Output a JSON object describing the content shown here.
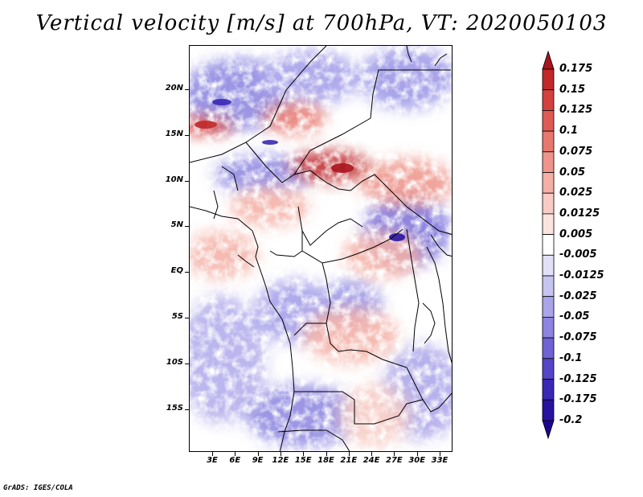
{
  "title": "Vertical velocity [m/s] at 700hPa, VT: 2020050103",
  "lat_labels": [
    "20N",
    "15N",
    "10N",
    "5N",
    "EQ",
    "5S",
    "10S",
    "15S"
  ],
  "lon_labels": [
    "3E",
    "6E",
    "9E",
    "12E",
    "15E",
    "18E",
    "21E",
    "24E",
    "27E",
    "30E",
    "33E"
  ],
  "colorbar": {
    "labels": [
      "0.175",
      "0.15",
      "0.125",
      "0.1",
      "0.075",
      "0.05",
      "0.025",
      "0.0125",
      "0.005",
      "-0.005",
      "-0.0125",
      "-0.025",
      "-0.05",
      "-0.075",
      "-0.1",
      "-0.125",
      "-0.175",
      "-0.2"
    ],
    "colors": [
      "#a8141e",
      "#c0282a",
      "#d4403e",
      "#e05a55",
      "#e8786e",
      "#ee948a",
      "#f4b0a6",
      "#f8ccc4",
      "#fbe4de",
      "#ffffff",
      "#e2e0f6",
      "#c8c4f0",
      "#aaa4e8",
      "#8c84e0",
      "#6e62d4",
      "#5444c6",
      "#3a28b4",
      "#2812a0",
      "#1a0690"
    ]
  },
  "credit": "GrADS: IGES/COLA"
}
